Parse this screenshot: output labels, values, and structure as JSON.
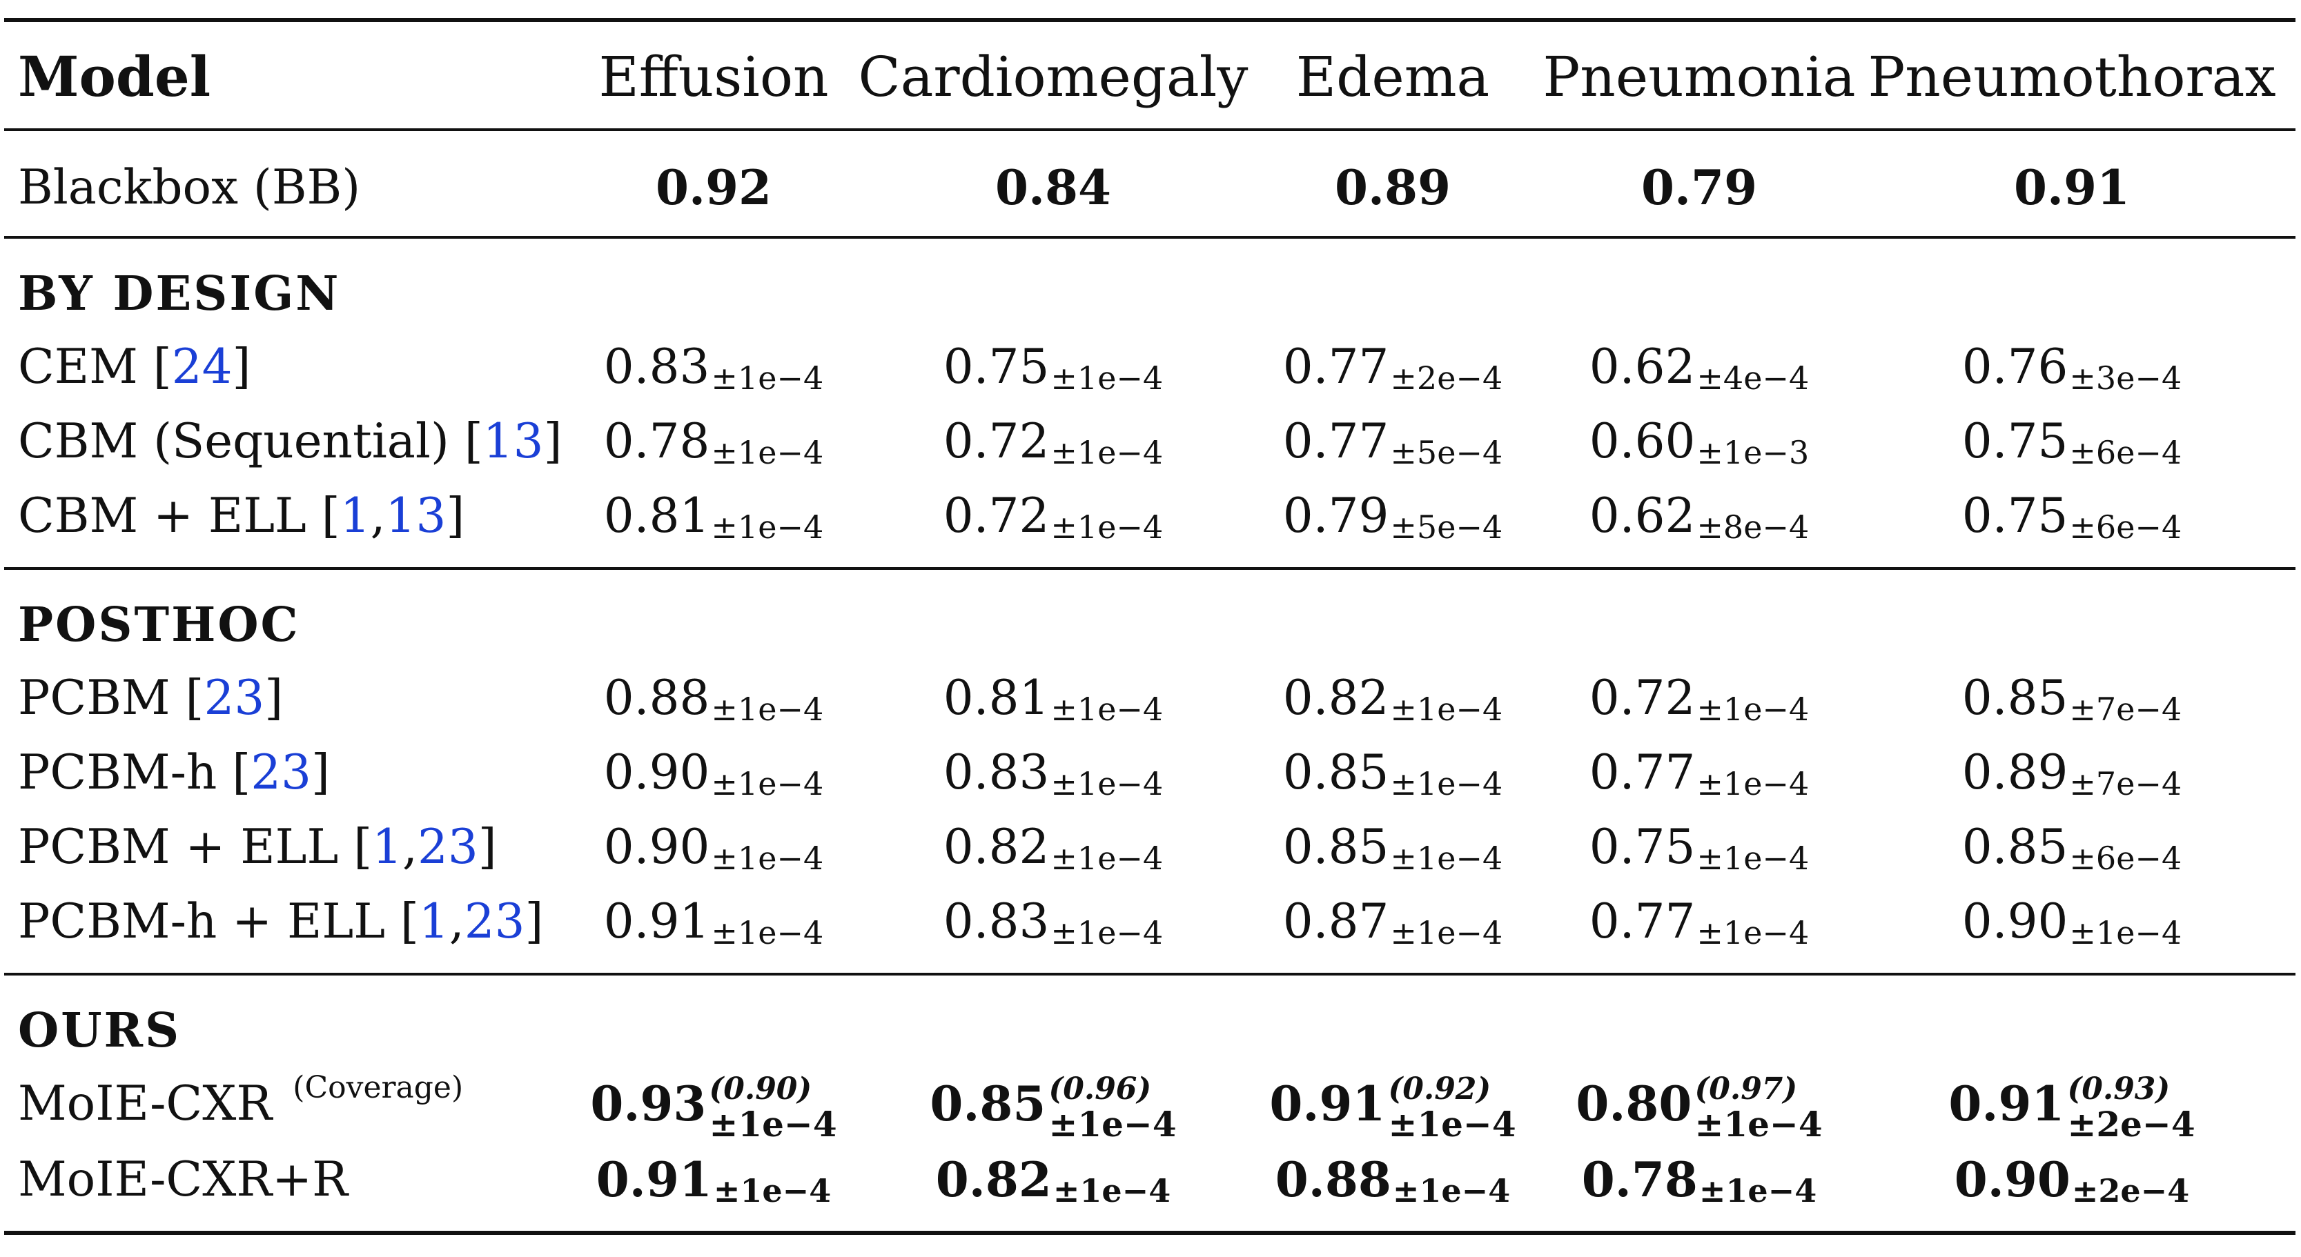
{
  "header": {
    "model": "Model",
    "columns": [
      "Effusion",
      "Cardiomegaly",
      "Edema",
      "Pneumonia",
      "Pneumothorax"
    ]
  },
  "blackbox": {
    "model": "Blackbox (BB)",
    "values": [
      "0.92",
      "0.84",
      "0.89",
      "0.79",
      "0.91"
    ]
  },
  "sections": {
    "by_design": "BY DESIGN",
    "posthoc": "POSTHOC",
    "ours": "OURS"
  },
  "by_design_rows": [
    {
      "model": "CEM",
      "refs": [
        "24"
      ],
      "values": [
        {
          "v": "0.83",
          "s": "±1e−4"
        },
        {
          "v": "0.75",
          "s": "±1e−4"
        },
        {
          "v": "0.77",
          "s": "±2e−4"
        },
        {
          "v": "0.62",
          "s": "±4e−4"
        },
        {
          "v": "0.76",
          "s": "±3e−4"
        }
      ]
    },
    {
      "model": "CBM (Sequential)",
      "refs": [
        "13"
      ],
      "values": [
        {
          "v": "0.78",
          "s": "±1e−4"
        },
        {
          "v": "0.72",
          "s": "±1e−4"
        },
        {
          "v": "0.77",
          "s": "±5e−4"
        },
        {
          "v": "0.60",
          "s": "±1e−3"
        },
        {
          "v": "0.75",
          "s": "±6e−4"
        }
      ]
    },
    {
      "model": "CBM + ELL",
      "refs": [
        "1",
        "13"
      ],
      "values": [
        {
          "v": "0.81",
          "s": "±1e−4"
        },
        {
          "v": "0.72",
          "s": "±1e−4"
        },
        {
          "v": "0.79",
          "s": "±5e−4"
        },
        {
          "v": "0.62",
          "s": "±8e−4"
        },
        {
          "v": "0.75",
          "s": "±6e−4"
        }
      ]
    }
  ],
  "posthoc_rows": [
    {
      "model": "PCBM",
      "refs": [
        "23"
      ],
      "values": [
        {
          "v": "0.88",
          "s": "±1e−4"
        },
        {
          "v": "0.81",
          "s": "±1e−4"
        },
        {
          "v": "0.82",
          "s": "±1e−4"
        },
        {
          "v": "0.72",
          "s": "±1e−4"
        },
        {
          "v": "0.85",
          "s": "±7e−4"
        }
      ]
    },
    {
      "model": "PCBM-h",
      "refs": [
        "23"
      ],
      "values": [
        {
          "v": "0.90",
          "s": "±1e−4"
        },
        {
          "v": "0.83",
          "s": "±1e−4"
        },
        {
          "v": "0.85",
          "s": "±1e−4"
        },
        {
          "v": "0.77",
          "s": "±1e−4"
        },
        {
          "v": "0.89",
          "s": "±7e−4"
        }
      ]
    },
    {
      "model": "PCBM + ELL",
      "refs": [
        "1",
        "23"
      ],
      "values": [
        {
          "v": "0.90",
          "s": "±1e−4"
        },
        {
          "v": "0.82",
          "s": "±1e−4"
        },
        {
          "v": "0.85",
          "s": "±1e−4"
        },
        {
          "v": "0.75",
          "s": "±1e−4"
        },
        {
          "v": "0.85",
          "s": "±6e−4"
        }
      ]
    },
    {
      "model": "PCBM-h + ELL",
      "refs": [
        "1",
        "23"
      ],
      "values": [
        {
          "v": "0.91",
          "s": "±1e−4"
        },
        {
          "v": "0.83",
          "s": "±1e−4"
        },
        {
          "v": "0.87",
          "s": "±1e−4"
        },
        {
          "v": "0.77",
          "s": "±1e−4"
        },
        {
          "v": "0.90",
          "s": "±1e−4"
        }
      ]
    }
  ],
  "ours_rows": [
    {
      "model": "MoIE-CXR",
      "superscript": "(Coverage)",
      "values": [
        {
          "v": "0.93",
          "s": "±1e−4",
          "c": "(0.90)"
        },
        {
          "v": "0.85",
          "s": "±1e−4",
          "c": "(0.96)"
        },
        {
          "v": "0.91",
          "s": "±1e−4",
          "c": "(0.92)"
        },
        {
          "v": "0.80",
          "s": "±1e−4",
          "c": "(0.97)"
        },
        {
          "v": "0.91",
          "s": "±2e−4",
          "c": "(0.93)"
        }
      ]
    },
    {
      "model": "MoIE-CXR+R",
      "values": [
        {
          "v": "0.91",
          "s": "±1e−4"
        },
        {
          "v": "0.82",
          "s": "±1e−4"
        },
        {
          "v": "0.88",
          "s": "±1e−4"
        },
        {
          "v": "0.78",
          "s": "±1e−4"
        },
        {
          "v": "0.90",
          "s": "±2e−4"
        }
      ]
    }
  ],
  "colors": {
    "citation": "#1a3fd6",
    "text": "#111111"
  }
}
